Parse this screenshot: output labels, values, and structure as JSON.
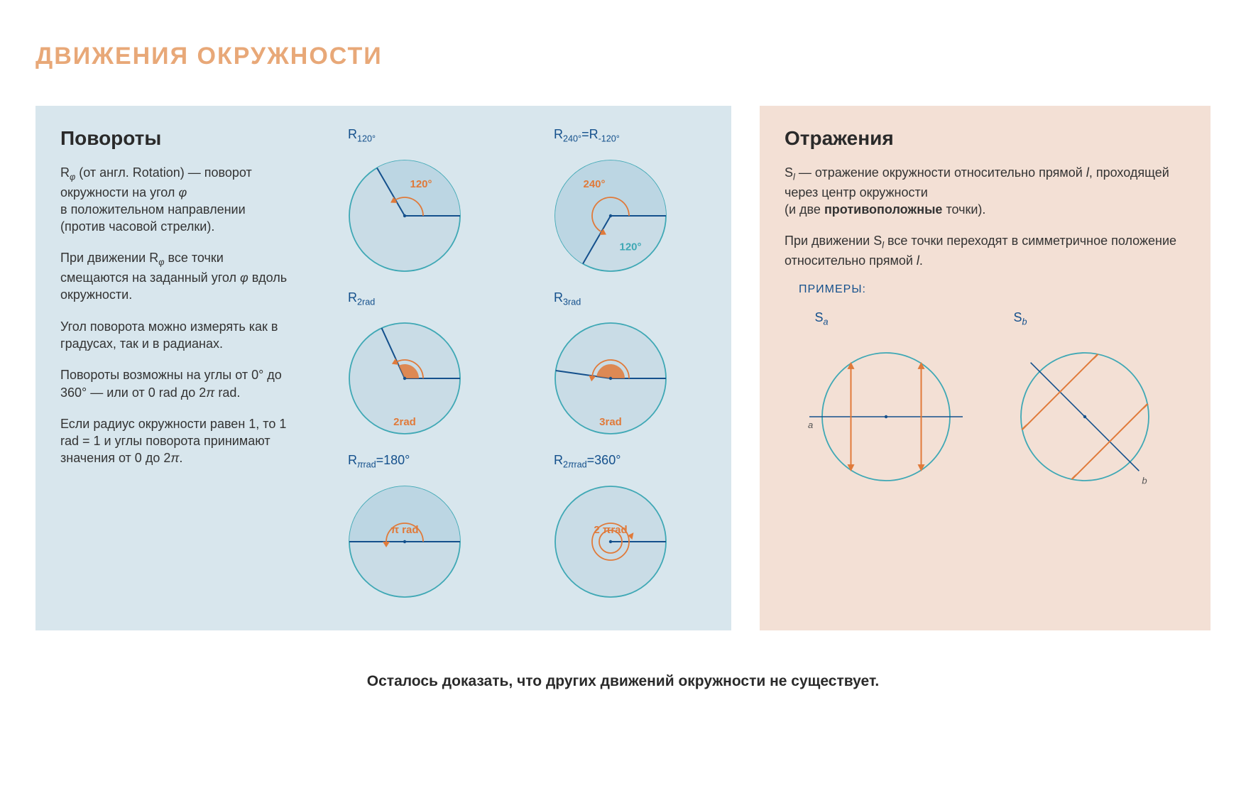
{
  "title": "ДВИЖЕНИЯ ОКРУЖНОСТИ",
  "rotations": {
    "heading": "Повороты",
    "p1": "R_φ (от англ. Rotation) — поворот окружности на угол φ в положительном направлении (против часовой стрелки).",
    "p2": "При движении R_φ все точки смещаются на заданный угол φ вдоль окружности.",
    "p3": "Угол поворота можно измерять как в градусах, так и в радианах.",
    "p4": "Повороты возможны на углы от 0° до 360° — или от 0 rad до 2π rad.",
    "p5": "Если радиус окружности равен 1, то 1 rad = 1 и углы поворота принимают значения от 0 до 2π.",
    "circle_stroke": "#3fa8b5",
    "radius_stroke": "#14508c",
    "arc_stroke": "#e07a3a",
    "sector_fill_light": "#bcd6e3",
    "circle_fill": "#c9dce6",
    "label_color": "#14508c",
    "arc_label_color": "#e07a3a",
    "diagrams": [
      {
        "label": "R_120°",
        "angle_deg": 120,
        "arc_label": "120°",
        "type": "deg"
      },
      {
        "label": "R_240°=R_-120°",
        "angle_deg": 240,
        "arc_label": "240°",
        "alt_label": "120°",
        "type": "deg_alt"
      },
      {
        "label": "R_2rad",
        "angle_rad": 2,
        "arc_label": "2rad",
        "type": "rad"
      },
      {
        "label": "R_3rad",
        "angle_rad": 3,
        "arc_label": "3rad",
        "type": "rad"
      },
      {
        "label": "R_πrad=180°",
        "angle_deg": 180,
        "arc_label": "π rad",
        "type": "deg"
      },
      {
        "label": "R_2πrad=360°",
        "angle_deg": 360,
        "arc_label": "2 πrad",
        "type": "full"
      }
    ]
  },
  "reflections": {
    "heading": "Отражения",
    "p1": "S_l — отражение окружности относительно прямой l, проходящей через центр окружности (и две противоположные точки).",
    "p1_bold": "противоположные",
    "p2": "При движении S_l все точки переходят в симметричное положение относительно прямой l.",
    "examples_label": "ПРИМЕРЫ:",
    "circle_stroke": "#3fa8b5",
    "axis_stroke": "#14508c",
    "arrow_stroke": "#e07a3a",
    "diagrams": [
      {
        "label": "S_a",
        "axis": "horizontal",
        "axis_label": "a"
      },
      {
        "label": "S_b",
        "axis": "diagonal",
        "axis_label": "b"
      }
    ]
  },
  "footer": "Осталось доказать, что других движений окружности не существует."
}
